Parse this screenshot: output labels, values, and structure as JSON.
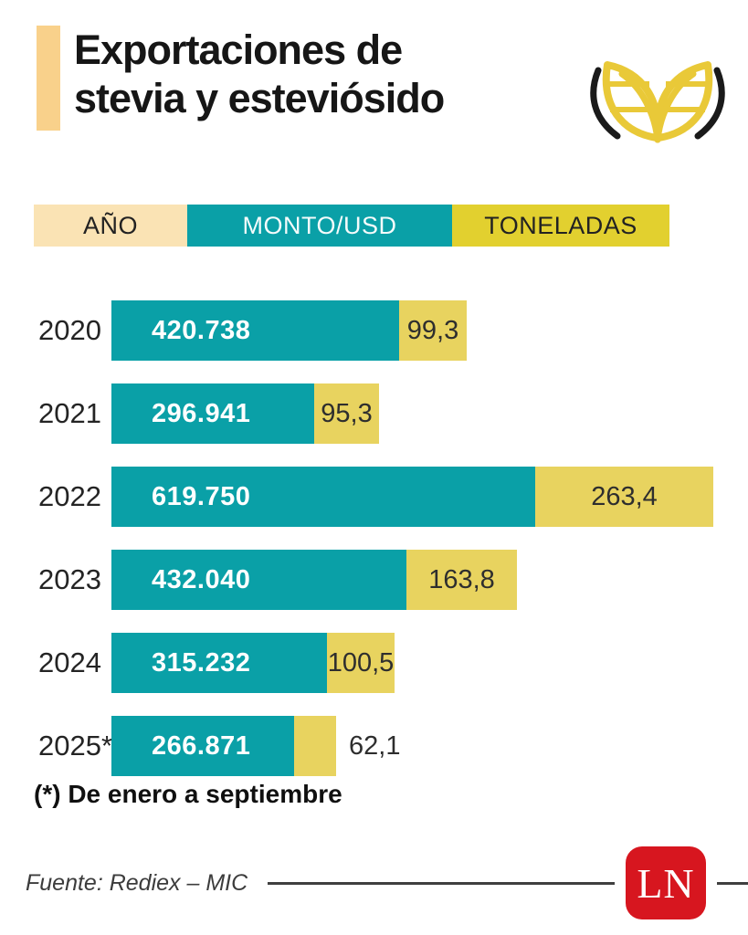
{
  "header": {
    "title_line1": "Exportaciones de",
    "title_line2": "stevia y esteviósido"
  },
  "legend": {
    "ano": "AÑO"
  },
  "chart_data": {
    "type": "bar",
    "orientation": "horizontal",
    "legend_position": "top",
    "categories": [
      "2020",
      "2021",
      "2022",
      "2023",
      "2024",
      "2025*"
    ],
    "series": [
      {
        "name": "MONTO/USD",
        "unit": "USD",
        "color": "#0aa0a7",
        "values": [
          420738,
          296941,
          619750,
          432040,
          315232,
          266871
        ],
        "labels": [
          "420.738",
          "296.941",
          "619.750",
          "432.040",
          "315.232",
          "266.871"
        ],
        "max_value": 619750
      },
      {
        "name": "TONELADAS",
        "unit": "t",
        "color": "#e8d35f",
        "values": [
          99.3,
          95.3,
          263.4,
          163.8,
          100.5,
          62.1
        ],
        "labels": [
          "99,3",
          "95,3",
          "263,4",
          "163,8",
          "100,5",
          "62,1"
        ],
        "max_value": 263.4
      }
    ]
  },
  "footnote": "(*) De enero a septiembre",
  "footer": {
    "source": "Fuente: Rediex – MIC",
    "logo_text": "LN"
  },
  "colors": {
    "teal": "#0aa0a7",
    "bar_yellow": "#e8d35f",
    "legend_yellow": "#e2d02f",
    "cream": "#fae3b4",
    "accent": "#f9d18b",
    "logo_red": "#d7161f"
  }
}
